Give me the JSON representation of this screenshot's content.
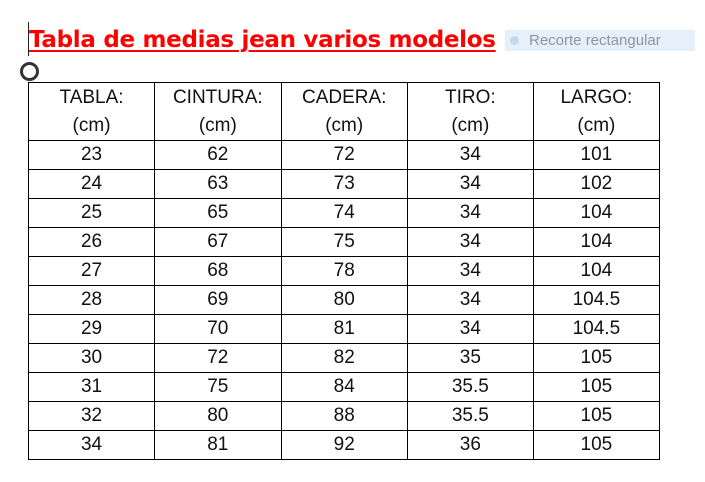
{
  "title": "Tabla de medias jean varios modelos",
  "table": {
    "headers": [
      [
        "TABLA:",
        "(cm)"
      ],
      [
        "CINTURA:",
        "(cm)"
      ],
      [
        "CADERA:",
        "(cm)"
      ],
      [
        "TIRO:",
        "(cm)"
      ],
      [
        "LARGO:",
        "(cm)"
      ]
    ],
    "rows": [
      [
        "23",
        "62",
        "72",
        "34",
        "101"
      ],
      [
        "24",
        "63",
        "73",
        "34",
        "102"
      ],
      [
        "25",
        "65",
        "74",
        "34",
        "104"
      ],
      [
        "26",
        "67",
        "75",
        "34",
        "104"
      ],
      [
        "27",
        "68",
        "78",
        "34",
        "104"
      ],
      [
        "28",
        "69",
        "80",
        "34",
        "104.5"
      ],
      [
        "29",
        "70",
        "81",
        "34",
        "104.5"
      ],
      [
        "30",
        "72",
        "82",
        "35",
        "105"
      ],
      [
        "31",
        "75",
        "84",
        "35.5",
        "105"
      ],
      [
        "32",
        "80",
        "88",
        "35.5",
        "105"
      ],
      [
        "34",
        "81",
        "92",
        "36",
        "105"
      ]
    ]
  },
  "overlay": {
    "label": "Recorte rectangular"
  },
  "colors": {
    "title": "#ff0000"
  }
}
